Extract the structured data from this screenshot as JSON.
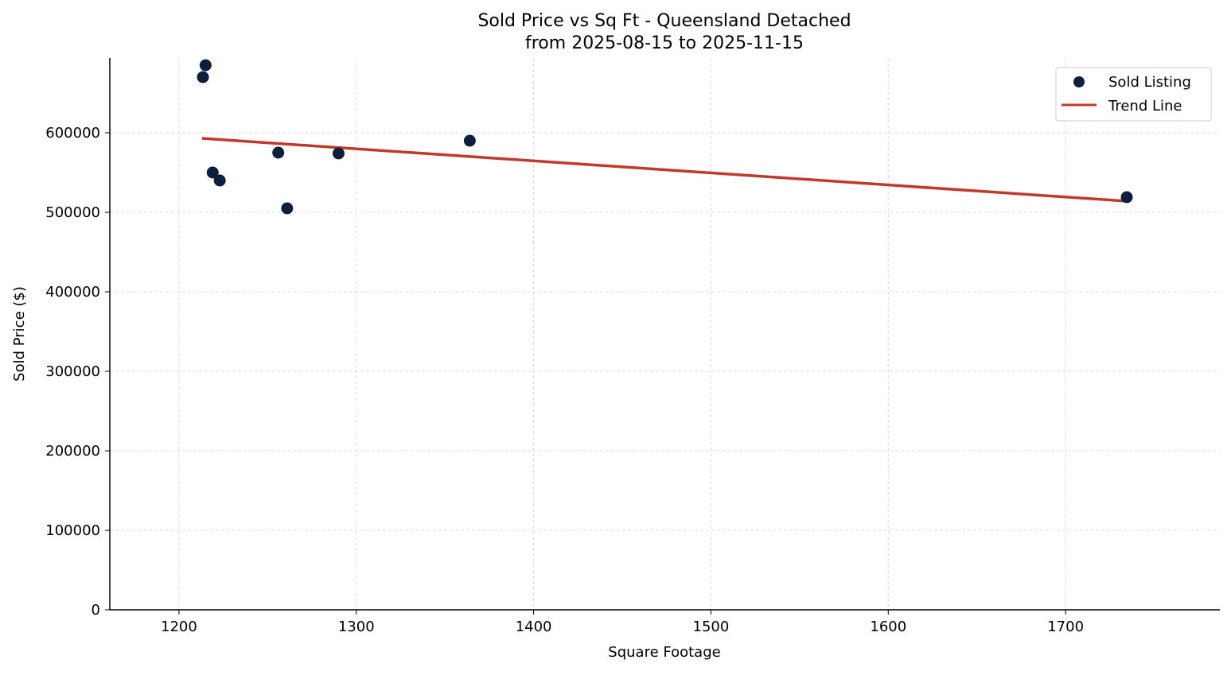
{
  "chart_data": {
    "type": "scatter",
    "title": "Sold Price vs Sq Ft - Queensland Detached",
    "subtitle": "from 2025-08-15 to 2025-11-15",
    "xlabel": "Square Footage",
    "ylabel": "Sold Price ($)",
    "xlim": [
      1161,
      1787
    ],
    "ylim": [
      0,
      694000
    ],
    "xticks": [
      1200,
      1300,
      1400,
      1500,
      1600,
      1700
    ],
    "yticks": [
      0,
      100000,
      200000,
      300000,
      400000,
      500000,
      600000
    ],
    "grid": true,
    "legend_position": "top-right",
    "series": [
      {
        "name": "Sold Listing",
        "type": "scatter",
        "color": "#0d1f3c",
        "x": [
          1213.5,
          1215,
          1219,
          1223,
          1256,
          1261,
          1290,
          1364,
          1734.5
        ],
        "y": [
          670000,
          685000,
          550000,
          540000,
          575000,
          505000,
          574000,
          590000,
          519000
        ]
      },
      {
        "name": "Trend Line",
        "type": "line",
        "color": "#c0392b",
        "x": [
          1213,
          1734.5
        ],
        "y": [
          593000,
          514000
        ]
      }
    ]
  }
}
